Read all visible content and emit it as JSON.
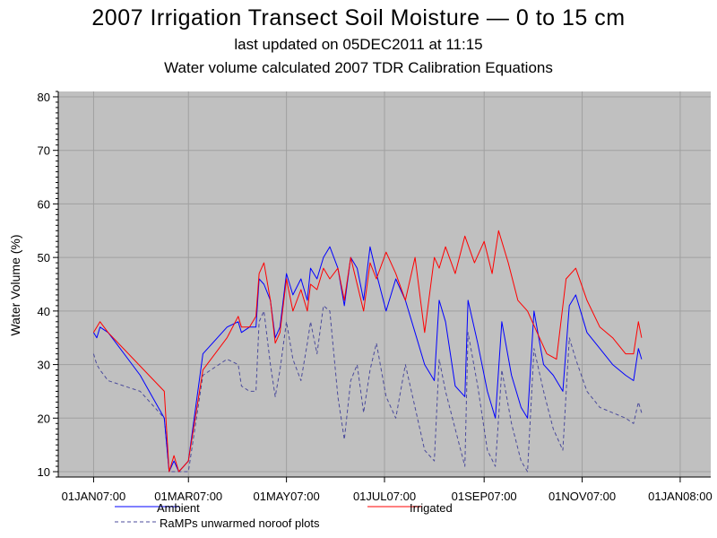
{
  "chart_data": {
    "type": "line",
    "title": "2007 Irrigation Transect Soil Moisture — 0 to 15 cm",
    "subtitle": "last updated on 05DEC2011 at 11:15",
    "subtitle2": "Water volume calculated 2007 TDR Calibration Equations",
    "ylabel": "Water Volume (%)",
    "xlabel": "",
    "xlim": [
      "2006-12-10",
      "2008-01-20"
    ],
    "ylim": [
      9,
      81
    ],
    "x_ticks": [
      "01JAN07:00",
      "01MAR07:00",
      "01MAY07:00",
      "01JUL07:00",
      "01SEP07:00",
      "01NOV07:00",
      "01JAN08:00"
    ],
    "x_tick_dates": [
      "2007-01-01",
      "2007-03-01",
      "2007-05-01",
      "2007-07-01",
      "2007-09-01",
      "2007-11-01",
      "2008-01-01"
    ],
    "y_ticks": [
      10,
      20,
      30,
      40,
      50,
      60,
      70,
      80
    ],
    "grid": true,
    "background": "#c0c0c0",
    "legend_position": "bottom",
    "series": [
      {
        "name": "Ambient",
        "color": "#0000ff",
        "dash": "solid",
        "points": [
          [
            "2007-01-01",
            36
          ],
          [
            "2007-01-03",
            35
          ],
          [
            "2007-01-05",
            37
          ],
          [
            "2007-01-10",
            36
          ],
          [
            "2007-01-15",
            34
          ],
          [
            "2007-01-30",
            28
          ],
          [
            "2007-02-14",
            20
          ],
          [
            "2007-02-17",
            10
          ],
          [
            "2007-02-20",
            12
          ],
          [
            "2007-02-23",
            10
          ],
          [
            "2007-02-26",
            11
          ],
          [
            "2007-03-01",
            12
          ],
          [
            "2007-03-10",
            32
          ],
          [
            "2007-03-25",
            37
          ],
          [
            "2007-04-01",
            38
          ],
          [
            "2007-04-03",
            36
          ],
          [
            "2007-04-08",
            37
          ],
          [
            "2007-04-12",
            37
          ],
          [
            "2007-04-14",
            46
          ],
          [
            "2007-04-17",
            45
          ],
          [
            "2007-04-21",
            42
          ],
          [
            "2007-04-24",
            35
          ],
          [
            "2007-04-27",
            37
          ],
          [
            "2007-05-01",
            47
          ],
          [
            "2007-05-05",
            43
          ],
          [
            "2007-05-10",
            46
          ],
          [
            "2007-05-14",
            42
          ],
          [
            "2007-05-16",
            48
          ],
          [
            "2007-05-20",
            46
          ],
          [
            "2007-05-24",
            50
          ],
          [
            "2007-05-28",
            52
          ],
          [
            "2007-06-02",
            48
          ],
          [
            "2007-06-06",
            41
          ],
          [
            "2007-06-10",
            50
          ],
          [
            "2007-06-14",
            48
          ],
          [
            "2007-06-18",
            42
          ],
          [
            "2007-06-22",
            52
          ],
          [
            "2007-06-26",
            47
          ],
          [
            "2007-07-02",
            40
          ],
          [
            "2007-07-08",
            46
          ],
          [
            "2007-07-14",
            42
          ],
          [
            "2007-07-20",
            36
          ],
          [
            "2007-07-26",
            30
          ],
          [
            "2007-08-01",
            27
          ],
          [
            "2007-08-04",
            42
          ],
          [
            "2007-08-08",
            38
          ],
          [
            "2007-08-14",
            26
          ],
          [
            "2007-08-20",
            24
          ],
          [
            "2007-08-22",
            42
          ],
          [
            "2007-08-28",
            34
          ],
          [
            "2007-09-03",
            25
          ],
          [
            "2007-09-08",
            20
          ],
          [
            "2007-09-12",
            38
          ],
          [
            "2007-09-18",
            28
          ],
          [
            "2007-09-24",
            22
          ],
          [
            "2007-09-28",
            20
          ],
          [
            "2007-10-02",
            40
          ],
          [
            "2007-10-08",
            30
          ],
          [
            "2007-10-14",
            28
          ],
          [
            "2007-10-20",
            25
          ],
          [
            "2007-10-24",
            41
          ],
          [
            "2007-10-28",
            43
          ],
          [
            "2007-11-04",
            36
          ],
          [
            "2007-11-12",
            33
          ],
          [
            "2007-11-20",
            30
          ],
          [
            "2007-11-28",
            28
          ],
          [
            "2007-12-03",
            27
          ],
          [
            "2007-12-06",
            33
          ],
          [
            "2007-12-08",
            31
          ]
        ]
      },
      {
        "name": "Irrigated",
        "color": "#ff0000",
        "dash": "solid",
        "points": [
          [
            "2007-01-01",
            36
          ],
          [
            "2007-01-03",
            37
          ],
          [
            "2007-01-05",
            38
          ],
          [
            "2007-01-10",
            36
          ],
          [
            "2007-02-14",
            25
          ],
          [
            "2007-02-17",
            10
          ],
          [
            "2007-02-20",
            13
          ],
          [
            "2007-02-23",
            10
          ],
          [
            "2007-02-26",
            11
          ],
          [
            "2007-03-01",
            12
          ],
          [
            "2007-03-10",
            29
          ],
          [
            "2007-03-25",
            35
          ],
          [
            "2007-04-01",
            39
          ],
          [
            "2007-04-03",
            37
          ],
          [
            "2007-04-08",
            37
          ],
          [
            "2007-04-12",
            39
          ],
          [
            "2007-04-14",
            47
          ],
          [
            "2007-04-17",
            49
          ],
          [
            "2007-04-21",
            42
          ],
          [
            "2007-04-24",
            34
          ],
          [
            "2007-04-27",
            36
          ],
          [
            "2007-05-01",
            46
          ],
          [
            "2007-05-05",
            40
          ],
          [
            "2007-05-10",
            44
          ],
          [
            "2007-05-14",
            40
          ],
          [
            "2007-05-16",
            45
          ],
          [
            "2007-05-20",
            44
          ],
          [
            "2007-05-24",
            48
          ],
          [
            "2007-05-28",
            46
          ],
          [
            "2007-06-02",
            48
          ],
          [
            "2007-06-06",
            42
          ],
          [
            "2007-06-10",
            50
          ],
          [
            "2007-06-14",
            45
          ],
          [
            "2007-06-18",
            40
          ],
          [
            "2007-06-22",
            49
          ],
          [
            "2007-06-26",
            46
          ],
          [
            "2007-07-02",
            51
          ],
          [
            "2007-07-08",
            47
          ],
          [
            "2007-07-14",
            42
          ],
          [
            "2007-07-20",
            50
          ],
          [
            "2007-07-26",
            36
          ],
          [
            "2007-08-01",
            50
          ],
          [
            "2007-08-04",
            48
          ],
          [
            "2007-08-08",
            52
          ],
          [
            "2007-08-14",
            47
          ],
          [
            "2007-08-20",
            54
          ],
          [
            "2007-08-26",
            49
          ],
          [
            "2007-09-01",
            53
          ],
          [
            "2007-09-06",
            47
          ],
          [
            "2007-09-10",
            55
          ],
          [
            "2007-09-16",
            49
          ],
          [
            "2007-09-22",
            42
          ],
          [
            "2007-09-28",
            40
          ],
          [
            "2007-10-04",
            36
          ],
          [
            "2007-10-10",
            32
          ],
          [
            "2007-10-16",
            31
          ],
          [
            "2007-10-22",
            46
          ],
          [
            "2007-10-28",
            48
          ],
          [
            "2007-11-04",
            42
          ],
          [
            "2007-11-12",
            37
          ],
          [
            "2007-11-20",
            35
          ],
          [
            "2007-11-28",
            32
          ],
          [
            "2007-12-03",
            32
          ],
          [
            "2007-12-06",
            38
          ],
          [
            "2007-12-08",
            35
          ]
        ]
      },
      {
        "name": "RaMPs unwarmed noroof plots",
        "color": "#4b4b9b",
        "dash": "dashed",
        "points": [
          [
            "2007-01-01",
            32
          ],
          [
            "2007-01-03",
            30
          ],
          [
            "2007-01-05",
            29
          ],
          [
            "2007-01-10",
            27
          ],
          [
            "2007-01-30",
            25
          ],
          [
            "2007-02-14",
            20
          ],
          [
            "2007-02-17",
            10
          ],
          [
            "2007-02-20",
            10
          ],
          [
            "2007-02-23",
            10
          ],
          [
            "2007-02-26",
            10
          ],
          [
            "2007-03-01",
            10
          ],
          [
            "2007-03-10",
            28
          ],
          [
            "2007-03-25",
            31
          ],
          [
            "2007-04-01",
            30
          ],
          [
            "2007-04-03",
            26
          ],
          [
            "2007-04-08",
            25
          ],
          [
            "2007-04-12",
            25
          ],
          [
            "2007-04-14",
            38
          ],
          [
            "2007-04-17",
            40
          ],
          [
            "2007-04-21",
            30
          ],
          [
            "2007-04-24",
            24
          ],
          [
            "2007-04-27",
            29
          ],
          [
            "2007-05-01",
            38
          ],
          [
            "2007-05-05",
            31
          ],
          [
            "2007-05-10",
            27
          ],
          [
            "2007-05-14",
            34
          ],
          [
            "2007-05-16",
            38
          ],
          [
            "2007-05-20",
            32
          ],
          [
            "2007-05-24",
            41
          ],
          [
            "2007-05-28",
            40
          ],
          [
            "2007-06-02",
            24
          ],
          [
            "2007-06-06",
            16
          ],
          [
            "2007-06-10",
            27
          ],
          [
            "2007-06-14",
            30
          ],
          [
            "2007-06-18",
            21
          ],
          [
            "2007-06-22",
            29
          ],
          [
            "2007-06-26",
            34
          ],
          [
            "2007-07-02",
            24
          ],
          [
            "2007-07-08",
            20
          ],
          [
            "2007-07-14",
            30
          ],
          [
            "2007-07-20",
            22
          ],
          [
            "2007-07-26",
            14
          ],
          [
            "2007-08-01",
            12
          ],
          [
            "2007-08-04",
            31
          ],
          [
            "2007-08-08",
            25
          ],
          [
            "2007-08-14",
            18
          ],
          [
            "2007-08-20",
            11
          ],
          [
            "2007-08-22",
            36
          ],
          [
            "2007-08-28",
            26
          ],
          [
            "2007-09-03",
            14
          ],
          [
            "2007-09-08",
            11
          ],
          [
            "2007-09-12",
            29
          ],
          [
            "2007-09-18",
            19
          ],
          [
            "2007-09-24",
            12
          ],
          [
            "2007-09-28",
            10
          ],
          [
            "2007-10-02",
            33
          ],
          [
            "2007-10-08",
            25
          ],
          [
            "2007-10-14",
            18
          ],
          [
            "2007-10-20",
            14
          ],
          [
            "2007-10-24",
            35
          ],
          [
            "2007-10-28",
            31
          ],
          [
            "2007-11-04",
            25
          ],
          [
            "2007-11-12",
            22
          ],
          [
            "2007-11-20",
            21
          ],
          [
            "2007-11-28",
            20
          ],
          [
            "2007-12-03",
            19
          ],
          [
            "2007-12-06",
            23
          ],
          [
            "2007-12-08",
            21
          ]
        ]
      }
    ]
  }
}
